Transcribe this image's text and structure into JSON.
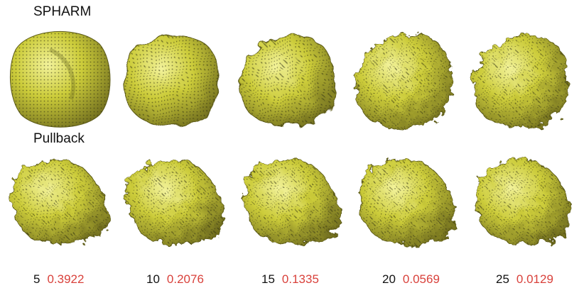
{
  "rows": [
    {
      "label": "SPHARM"
    },
    {
      "label": "Pullback"
    }
  ],
  "columns": [
    {
      "level": "5",
      "error": "0.3922"
    },
    {
      "level": "10",
      "error": "0.2076"
    },
    {
      "level": "15",
      "error": "0.1335"
    },
    {
      "level": "20",
      "error": "0.0569"
    },
    {
      "level": "25",
      "error": "0.0129"
    }
  ],
  "colors": {
    "surface": "#c8c832",
    "surface_dark": "#7d7a22",
    "surface_light": "#eeee88",
    "error_text": "#d9413b"
  }
}
